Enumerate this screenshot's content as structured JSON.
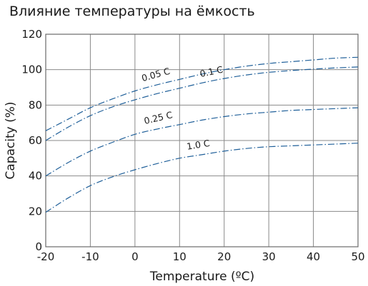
{
  "chart_data": {
    "type": "line",
    "title": "Влияние температуры на ёмкость",
    "xlabel": "Temperature (ºC)",
    "ylabel": "Capacity (%)",
    "xlim": [
      -20,
      50
    ],
    "ylim": [
      0,
      120
    ],
    "xticks": [
      -20,
      -10,
      0,
      10,
      20,
      30,
      40,
      50
    ],
    "yticks": [
      0,
      20,
      40,
      60,
      80,
      100,
      120
    ],
    "xtick_labels": [
      "-20",
      "-10",
      "0",
      "10",
      "20",
      "30",
      "40",
      "50"
    ],
    "ytick_labels": [
      "0",
      "20",
      "40",
      "60",
      "80",
      "100",
      "120"
    ],
    "grid": true,
    "line_color": "#1f5f99",
    "series": [
      {
        "name": "0.05 C",
        "x": [
          -20,
          -15,
          -10,
          -5,
          0,
          5,
          10,
          15,
          20,
          25,
          30,
          35,
          40,
          45,
          50
        ],
        "y": [
          65.5,
          72,
          78.5,
          83.5,
          88,
          91.5,
          94.5,
          97.5,
          100,
          102,
          103.5,
          104.5,
          105.5,
          106.5,
          107
        ]
      },
      {
        "name": "0.1 C",
        "x": [
          -20,
          -15,
          -10,
          -5,
          0,
          5,
          10,
          15,
          20,
          25,
          30,
          35,
          40,
          45,
          50
        ],
        "y": [
          60,
          67.5,
          74,
          79,
          83,
          86.5,
          89.5,
          92.5,
          95,
          97,
          98.5,
          99.5,
          100.3,
          101,
          101.5
        ]
      },
      {
        "name": "0.25 C",
        "x": [
          -20,
          -15,
          -10,
          -5,
          0,
          5,
          10,
          15,
          20,
          25,
          30,
          35,
          40,
          45,
          50
        ],
        "y": [
          40,
          47.5,
          54,
          59,
          63.5,
          66.5,
          69,
          71.5,
          73.5,
          75,
          76,
          77,
          77.5,
          78,
          78.5
        ]
      },
      {
        "name": "1.0 C",
        "x": [
          -20,
          -15,
          -10,
          -5,
          0,
          5,
          10,
          15,
          20,
          25,
          30,
          35,
          40,
          45,
          50
        ],
        "y": [
          19.5,
          27.5,
          34.5,
          39.5,
          43.5,
          47,
          50,
          52,
          54,
          55.5,
          56.5,
          57,
          57.5,
          58,
          58.5
        ]
      }
    ]
  }
}
